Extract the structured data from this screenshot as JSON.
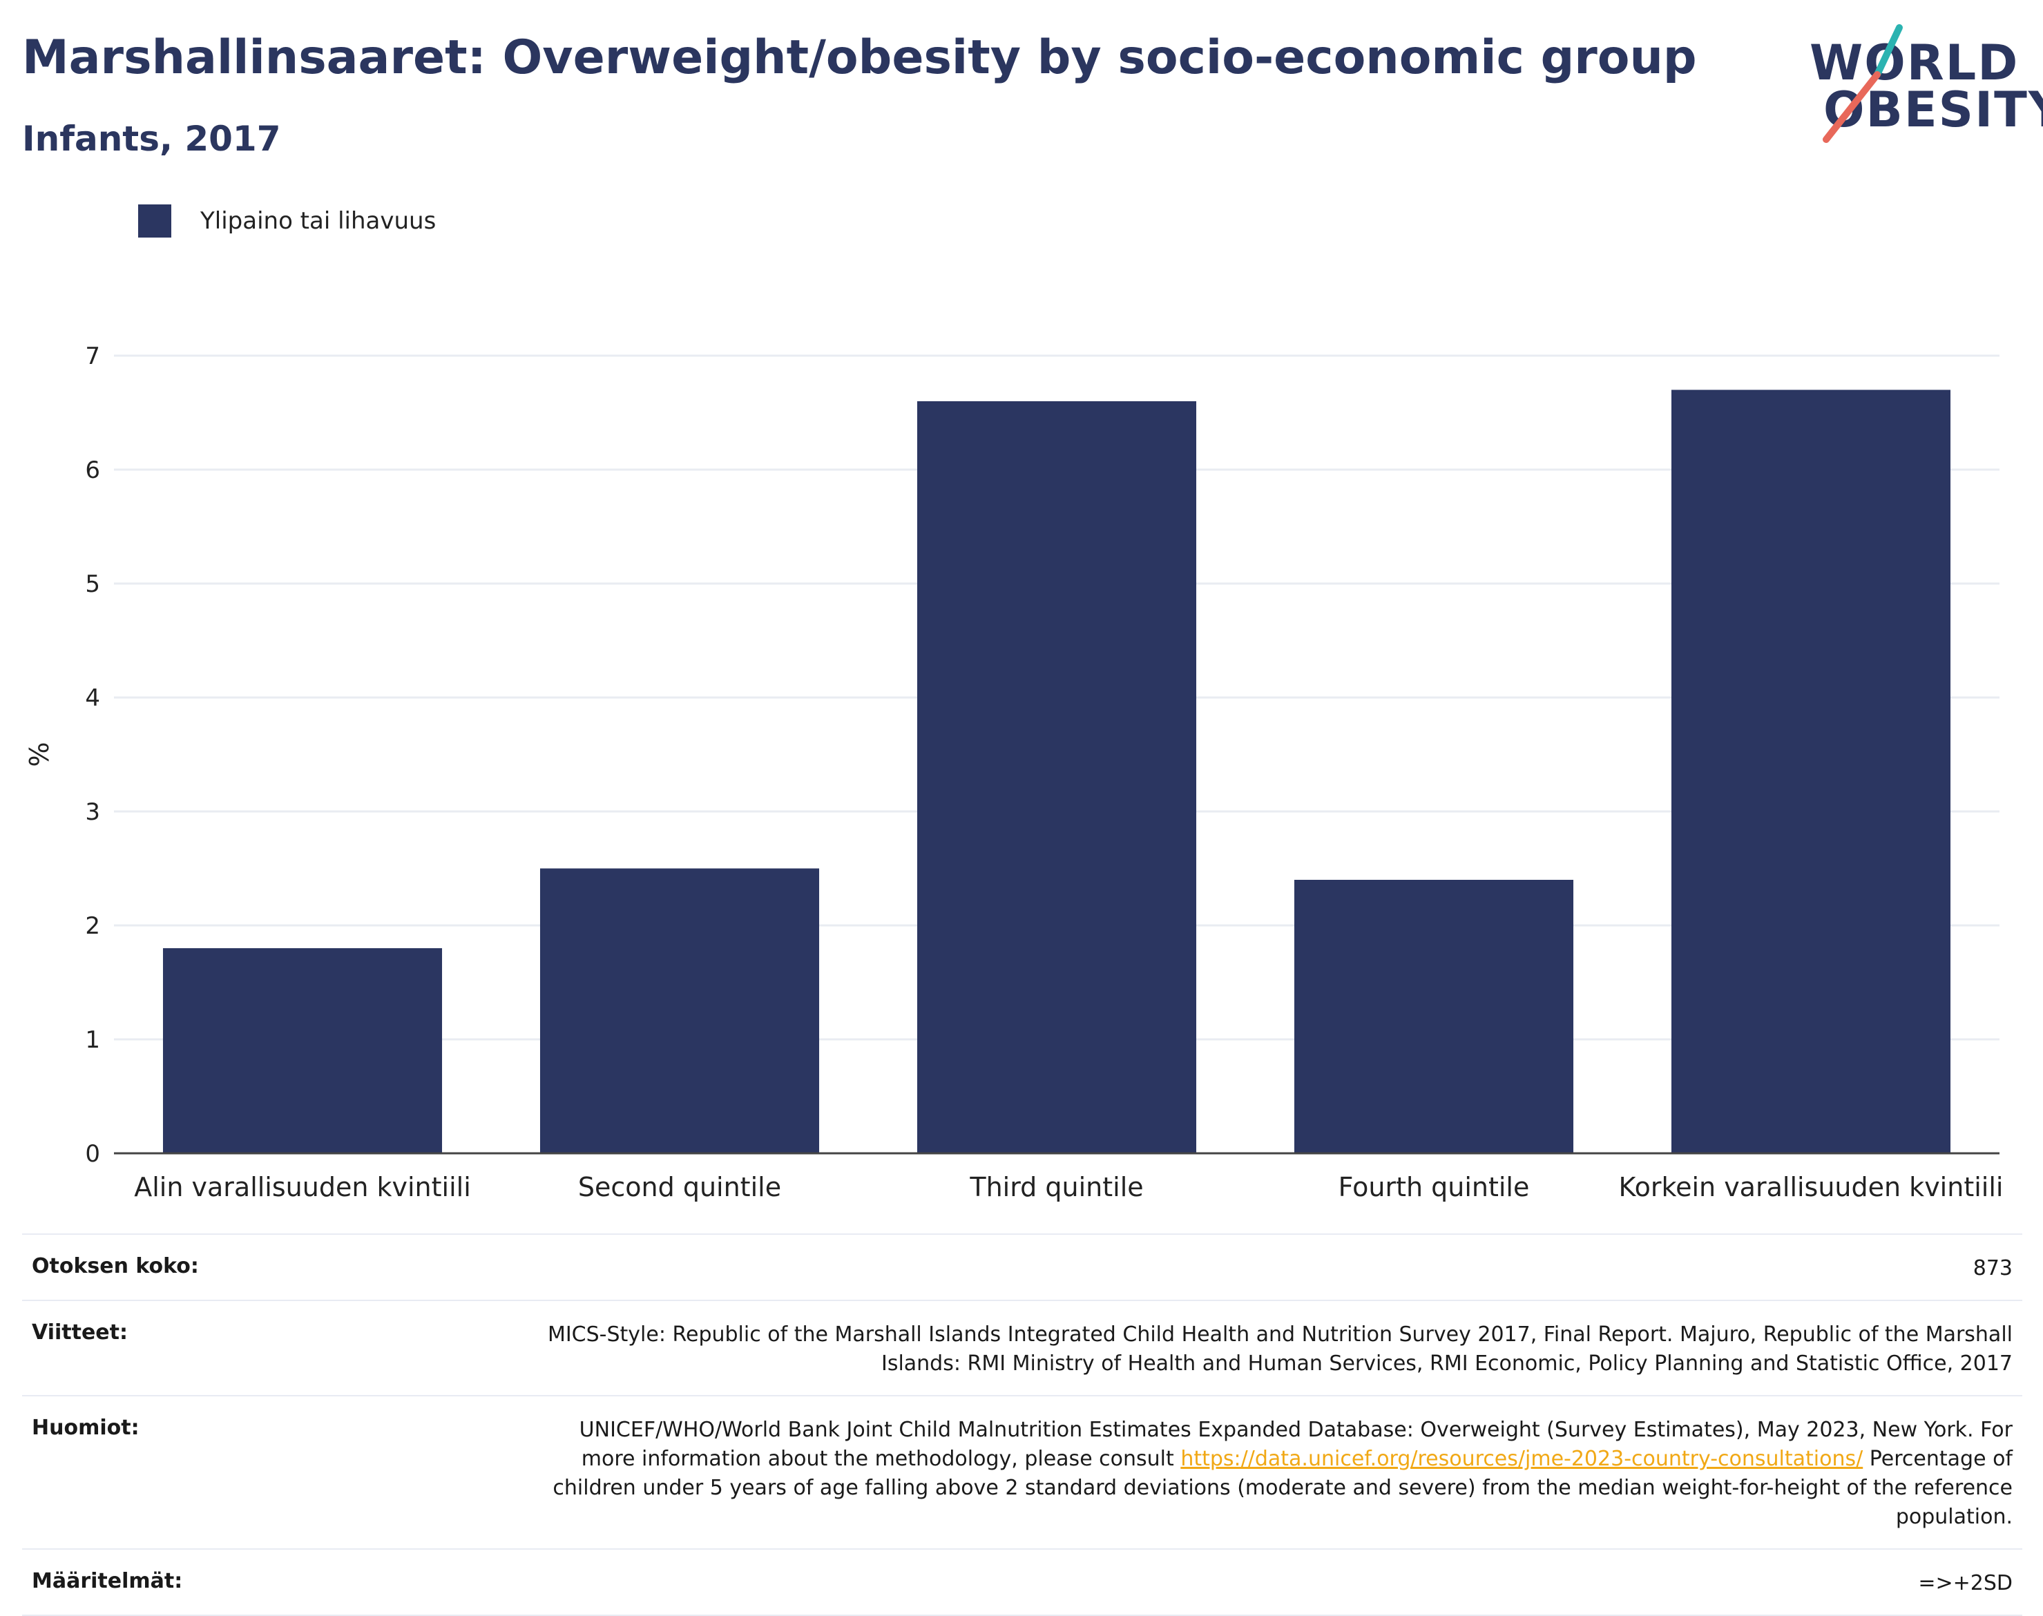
{
  "header": {
    "title": "Marshallinsaaret: Overweight/obesity by socio-economic group",
    "subtitle": "Infants, 2017"
  },
  "logo": {
    "line1": "WORLD",
    "line2": "OBESITY",
    "accent_teal": "#2bb3b1",
    "accent_red": "#e8685a"
  },
  "colors": {
    "bar": "#2b3661",
    "text_dark": "#2b365f"
  },
  "chart_data": {
    "type": "bar",
    "categories": [
      "Alin varallisuuden kvintiili",
      "Second quintile",
      "Third quintile",
      "Fourth quintile",
      "Korkein varallisuuden kvintiili"
    ],
    "series": [
      {
        "name": "Ylipaino tai lihavuus",
        "values": [
          1.8,
          2.5,
          6.6,
          2.4,
          6.7
        ]
      }
    ],
    "ylabel": "%",
    "ylim": [
      0,
      7
    ],
    "yticks": [
      0,
      1,
      2,
      3,
      4,
      5,
      6,
      7
    ],
    "grid": true,
    "legend": "top-left"
  },
  "info": {
    "sample_label": "Otoksen koko:",
    "sample_value": "873",
    "refs_label": "Viitteet:",
    "refs_value": "MICS-Style: Republic of the Marshall Islands Integrated Child Health and Nutrition Survey 2017, Final Report. Majuro, Republic of the Marshall Islands: RMI Ministry of Health and Human Services, RMI Economic, Policy Planning and Statistic Office, 2017",
    "notes_label": "Huomiot:",
    "notes_before": "UNICEF/WHO/World Bank Joint Child Malnutrition Estimates Expanded Database: Overweight (Survey Estimates), May 2023, New York. For more information about the methodology, please consult ",
    "notes_link": "https://data.unicef.org/resources/jme-2023-country-consultations/",
    "notes_after": " Percentage of children under 5 years of age falling above 2 standard deviations (moderate and severe) from the median weight-for-height of the reference population.",
    "defs_label": "Määritelmät:",
    "defs_value": "=>+2SD"
  }
}
